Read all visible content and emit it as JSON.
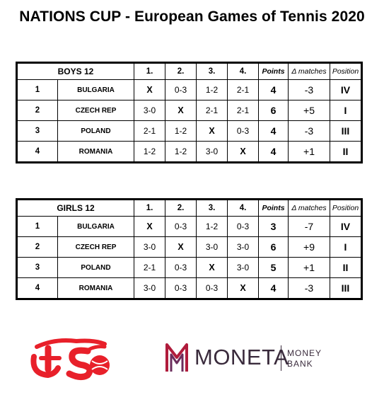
{
  "title": "NATIONS CUP - European Games of Tennis 2020",
  "columns": {
    "c1": "1.",
    "c2": "2.",
    "c3": "3.",
    "c4": "4.",
    "points": "Points",
    "delta": "Δ matches",
    "position": "Position"
  },
  "boys": {
    "category": "BOYS 12",
    "rows": [
      {
        "no": "1",
        "team": "BULGARIA",
        "m": [
          "X",
          "0-3",
          "1-2",
          "2-1"
        ],
        "points": "4",
        "delta": "-3",
        "position": "IV"
      },
      {
        "no": "2",
        "team": "CZECH REP",
        "m": [
          "3-0",
          "X",
          "2-1",
          "2-1"
        ],
        "points": "6",
        "delta": "+5",
        "position": "I"
      },
      {
        "no": "3",
        "team": "POLAND",
        "m": [
          "2-1",
          "1-2",
          "X",
          "0-3"
        ],
        "points": "4",
        "delta": "-3",
        "position": "III"
      },
      {
        "no": "4",
        "team": "ROMANIA",
        "m": [
          "1-2",
          "1-2",
          "3-0",
          "X"
        ],
        "points": "4",
        "delta": "+1",
        "position": "II"
      }
    ]
  },
  "girls": {
    "category": "GIRLS 12",
    "rows": [
      {
        "no": "1",
        "team": "BULGARIA",
        "m": [
          "X",
          "0-3",
          "1-2",
          "0-3"
        ],
        "points": "3",
        "delta": "-7",
        "position": "IV"
      },
      {
        "no": "2",
        "team": "CZECH REP",
        "m": [
          "3-0",
          "X",
          "3-0",
          "3-0"
        ],
        "points": "6",
        "delta": "+9",
        "position": "I"
      },
      {
        "no": "3",
        "team": "POLAND",
        "m": [
          "2-1",
          "0-3",
          "X",
          "3-0"
        ],
        "points": "5",
        "delta": "+1",
        "position": "II"
      },
      {
        "no": "4",
        "team": "ROMANIA",
        "m": [
          "3-0",
          "0-3",
          "0-3",
          "X"
        ],
        "points": "4",
        "delta": "-3",
        "position": "III"
      }
    ]
  },
  "logos": {
    "federation_logo": "CTS",
    "sponsor_name": "MONETA",
    "sponsor_sub_1": "MONEY",
    "sponsor_sub_2": "BANK",
    "federation_color": "#e8202a",
    "sponsor_mark_color": "#b01c3c",
    "sponsor_text_color": "#3a2b3c"
  }
}
